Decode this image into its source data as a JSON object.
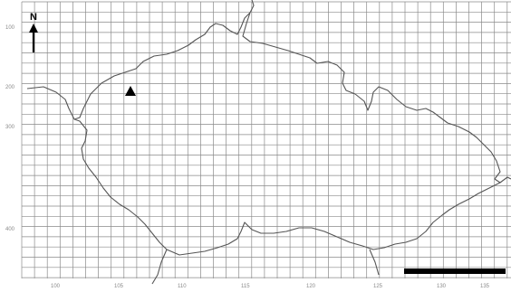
{
  "map": {
    "north_label": "N",
    "y_labels": [
      "100",
      "200",
      "300",
      "400"
    ],
    "x_labels": [
      "100",
      "105",
      "110",
      "115",
      "120",
      "125",
      "130",
      "135"
    ],
    "colors": {
      "background": "#ffffff",
      "grid": "#8a8a8a",
      "boundary": "#555555",
      "marker": "#000000",
      "scale_bar": "#000000"
    },
    "icons": {
      "north_arrow": "north-arrow-icon",
      "site_marker": "triangle-marker-icon"
    }
  }
}
